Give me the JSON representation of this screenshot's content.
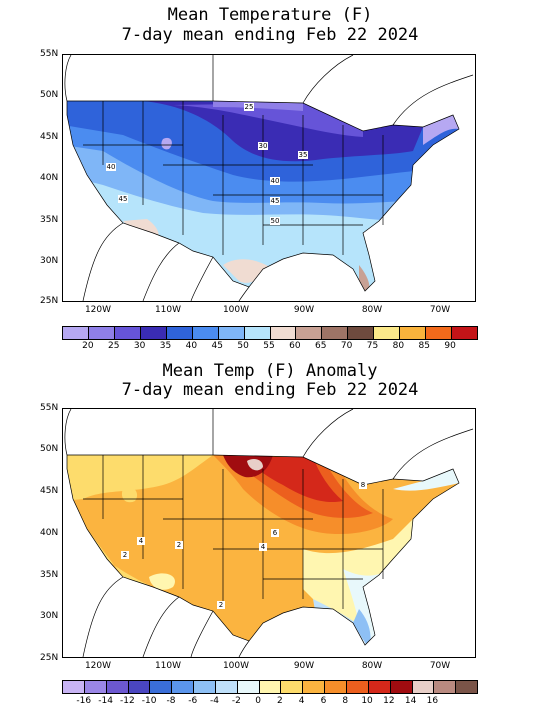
{
  "map1": {
    "title_line1": "Mean Temperature (F)",
    "title_line2": "7-day mean ending Feb 22 2024",
    "lat_labels": [
      "55N",
      "50N",
      "45N",
      "40N",
      "35N",
      "30N",
      "25N"
    ],
    "lon_labels": [
      "120W",
      "110W",
      "100W",
      "90W",
      "80W",
      "70W"
    ],
    "contour_labels": [
      "25",
      "30",
      "35",
      "40",
      "40",
      "45",
      "45",
      "50"
    ],
    "colorbar_colors": [
      "#b6a8f2",
      "#8f7fe8",
      "#6654d8",
      "#3a2cb4",
      "#2f63da",
      "#4b8cf0",
      "#7fb6f7",
      "#b6e4fb",
      "#f0dcd2",
      "#c8a194",
      "#9e7466",
      "#6e4a3e",
      "#fbe98a",
      "#f9b33c",
      "#f26a1b",
      "#c41418"
    ],
    "colorbar_labels": [
      "20",
      "25",
      "30",
      "35",
      "40",
      "45",
      "50",
      "55",
      "60",
      "65",
      "70",
      "75",
      "80",
      "85",
      "90"
    ]
  },
  "map2": {
    "title_line1": "Mean Temp (F) Anomaly",
    "title_line2": "7-day mean ending Feb 22 2024",
    "lat_labels": [
      "55N",
      "50N",
      "45N",
      "40N",
      "35N",
      "30N",
      "25N"
    ],
    "lon_labels": [
      "120W",
      "110W",
      "100W",
      "90W",
      "80W",
      "70W"
    ],
    "contour_labels": [
      "4",
      "2",
      "2",
      "4",
      "6",
      "8",
      "2"
    ],
    "colorbar_colors": [
      "#c8b4f4",
      "#9a86e6",
      "#6c58d0",
      "#4a46c0",
      "#3a6ed8",
      "#5b95ec",
      "#8ec0f5",
      "#bfe0fa",
      "#e8f8fb",
      "#fff6b0",
      "#fddc6c",
      "#fbb440",
      "#f68e2a",
      "#ec5f1e",
      "#d4281a",
      "#a00c10",
      "#e8cfc8",
      "#b98a80",
      "#7a5448"
    ],
    "colorbar_labels": [
      "-16",
      "-14",
      "-12",
      "-10",
      "-8",
      "-6",
      "-4",
      "-2",
      "0",
      "2",
      "4",
      "6",
      "8",
      "10",
      "12",
      "14",
      "16"
    ]
  }
}
